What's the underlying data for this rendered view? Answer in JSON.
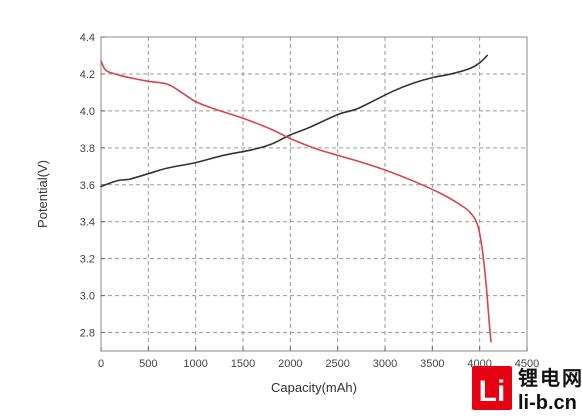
{
  "chart_data": {
    "type": "line",
    "xlabel": "Capacity(mAh)",
    "ylabel": "Potential(V)",
    "xlim": [
      0,
      4500
    ],
    "ylim": [
      2.7,
      4.4
    ],
    "x_ticks": [
      0,
      500,
      1000,
      1500,
      2000,
      2500,
      3000,
      3500,
      4000,
      4500
    ],
    "y_ticks": [
      "2.8",
      "3.0",
      "3.2",
      "3.4",
      "3.6",
      "3.8",
      "4.0",
      "4.2",
      "4.4"
    ],
    "grid": true,
    "series": [
      {
        "color": "#333333",
        "points": [
          [
            0,
            3.59
          ],
          [
            100,
            3.61
          ],
          [
            200,
            3.625
          ],
          [
            300,
            3.63
          ],
          [
            500,
            3.66
          ],
          [
            700,
            3.69
          ],
          [
            1000,
            3.72
          ],
          [
            1300,
            3.76
          ],
          [
            1600,
            3.79
          ],
          [
            1800,
            3.82
          ],
          [
            2000,
            3.87
          ],
          [
            2200,
            3.91
          ],
          [
            2500,
            3.98
          ],
          [
            2700,
            4.01
          ],
          [
            2900,
            4.06
          ],
          [
            3100,
            4.11
          ],
          [
            3300,
            4.15
          ],
          [
            3500,
            4.18
          ],
          [
            3700,
            4.2
          ],
          [
            3900,
            4.23
          ],
          [
            4000,
            4.26
          ],
          [
            4080,
            4.3
          ]
        ]
      },
      {
        "color": "#d9434e",
        "points": [
          [
            0,
            4.27
          ],
          [
            50,
            4.22
          ],
          [
            150,
            4.2
          ],
          [
            300,
            4.18
          ],
          [
            500,
            4.16
          ],
          [
            700,
            4.145
          ],
          [
            850,
            4.1
          ],
          [
            1000,
            4.05
          ],
          [
            1200,
            4.01
          ],
          [
            1500,
            3.96
          ],
          [
            1800,
            3.9
          ],
          [
            2000,
            3.85
          ],
          [
            2300,
            3.79
          ],
          [
            2700,
            3.73
          ],
          [
            3000,
            3.68
          ],
          [
            3300,
            3.62
          ],
          [
            3600,
            3.55
          ],
          [
            3800,
            3.49
          ],
          [
            3900,
            3.45
          ],
          [
            3980,
            3.38
          ],
          [
            4030,
            3.24
          ],
          [
            4070,
            3.05
          ],
          [
            4100,
            2.86
          ],
          [
            4120,
            2.75
          ]
        ]
      }
    ]
  },
  "watermark": {
    "logo_text": "Li",
    "cn_text": "锂电网",
    "url_text": "li-b.cn",
    "color": "#e60012"
  }
}
